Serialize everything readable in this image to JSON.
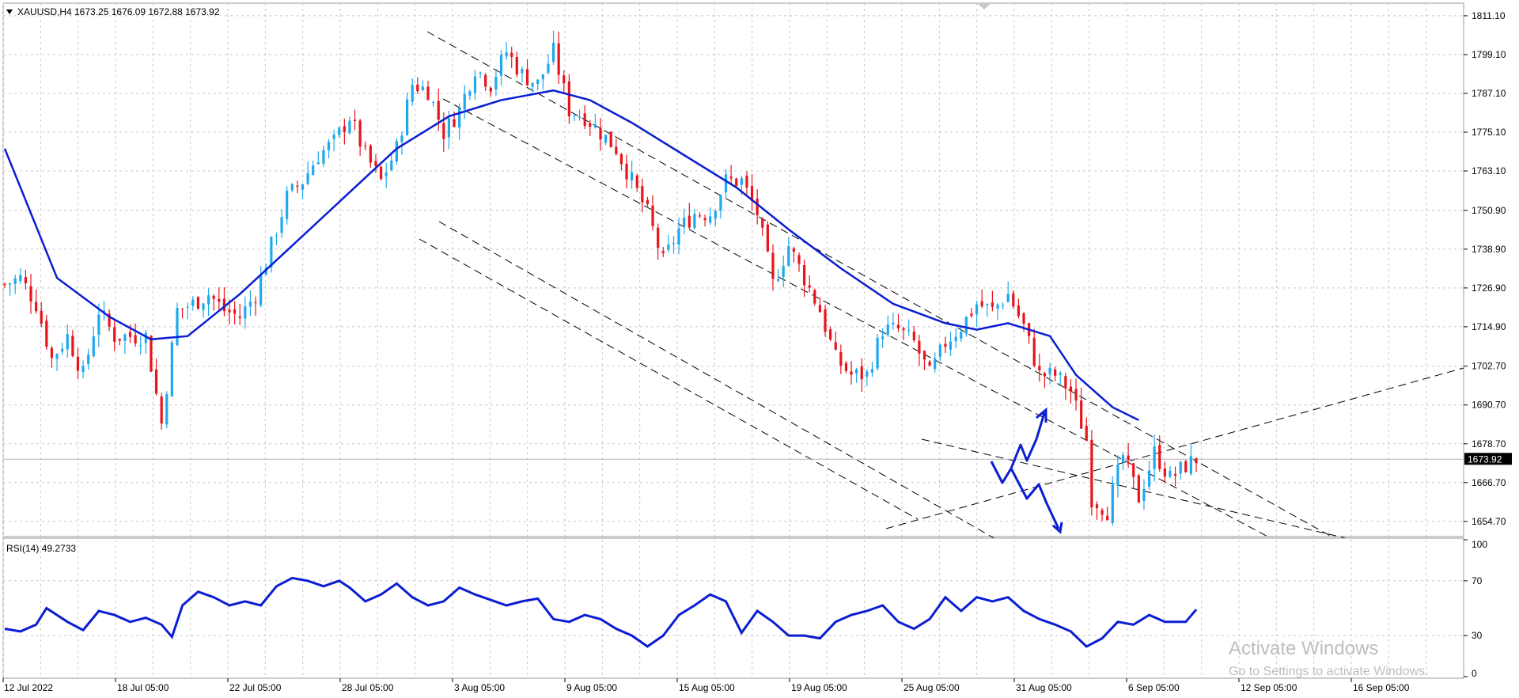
{
  "header": {
    "symbol": "XAUUSD,H4",
    "ohlc": "1673.25 1676.09 1672.88 1673.92"
  },
  "watermark": {
    "line1": "Activate Windows",
    "line2": "Go to Settings to activate Windows."
  },
  "colors": {
    "bull": "#1fa8ee",
    "bear": "#e8141c",
    "ma": "#0a1ed2",
    "grid": "#c8c8c8",
    "drawing": "#0a1ed2",
    "trend": "#000000"
  },
  "chart_data": [
    {
      "type": "candlestick",
      "symbol": "XAUUSD",
      "timeframe": "H4",
      "ylim": [
        1650.0,
        1815.0
      ],
      "y_ticks": [
        "1811.10",
        "1799.10",
        "1787.10",
        "1775.10",
        "1763.10",
        "1750.90",
        "1738.90",
        "1726.90",
        "1714.90",
        "1702.70",
        "1690.70",
        "1678.70",
        "1666.70",
        "1654.70"
      ],
      "last_price": "1673.92",
      "x_labels": [
        "12 Jul 2022",
        "18 Jul 05:00",
        "22 Jul 05:00",
        "28 Jul 05:00",
        "3 Aug 05:00",
        "9 Aug 05:00",
        "15 Aug 05:00",
        "19 Aug 05:00",
        "25 Aug 05:00",
        "31 Aug 05:00",
        "6 Sep 05:00",
        "12 Sep 05:00",
        "16 Sep 05:00"
      ],
      "close_path": [
        [
          0,
          1728
        ],
        [
          3,
          1730
        ],
        [
          6,
          1722
        ],
        [
          9,
          1705
        ],
        [
          12,
          1712
        ],
        [
          15,
          1700
        ],
        [
          18,
          1720
        ],
        [
          21,
          1712
        ],
        [
          24,
          1712
        ],
        [
          27,
          1712
        ],
        [
          30,
          1685
        ],
        [
          33,
          1720
        ],
        [
          36,
          1722
        ],
        [
          39,
          1725
        ],
        [
          42,
          1720
        ],
        [
          45,
          1718
        ],
        [
          48,
          1725
        ],
        [
          51,
          1740
        ],
        [
          54,
          1755
        ],
        [
          57,
          1760
        ],
        [
          60,
          1768
        ],
        [
          63,
          1772
        ],
        [
          66,
          1780
        ],
        [
          69,
          1768
        ],
        [
          72,
          1760
        ],
        [
          75,
          1770
        ],
        [
          78,
          1790
        ],
        [
          81,
          1788
        ],
        [
          84,
          1775
        ],
        [
          87,
          1782
        ],
        [
          90,
          1795
        ],
        [
          93,
          1790
        ],
        [
          96,
          1800
        ],
        [
          99,
          1793
        ],
        [
          102,
          1790
        ],
        [
          105,
          1800
        ],
        [
          108,
          1782
        ],
        [
          111,
          1780
        ],
        [
          114,
          1775
        ],
        [
          117,
          1770
        ],
        [
          120,
          1760
        ],
        [
          123,
          1750
        ],
        [
          126,
          1735
        ],
        [
          129,
          1745
        ],
        [
          132,
          1750
        ],
        [
          135,
          1750
        ],
        [
          138,
          1760
        ],
        [
          141,
          1760
        ],
        [
          144,
          1750
        ],
        [
          147,
          1728
        ],
        [
          150,
          1740
        ],
        [
          153,
          1730
        ],
        [
          156,
          1720
        ],
        [
          159,
          1705
        ],
        [
          162,
          1700
        ],
        [
          165,
          1700
        ],
        [
          168,
          1714
        ],
        [
          171,
          1714
        ],
        [
          174,
          1710
        ],
        [
          177,
          1700
        ],
        [
          180,
          1710
        ],
        [
          183,
          1715
        ],
        [
          186,
          1722
        ],
        [
          189,
          1720
        ],
        [
          192,
          1725
        ],
        [
          195,
          1715
        ],
        [
          198,
          1700
        ],
        [
          201,
          1700
        ],
        [
          204,
          1695
        ],
        [
          207,
          1680
        ],
        [
          208,
          1662
        ],
        [
          211,
          1658
        ],
        [
          214,
          1675
        ],
        [
          217,
          1662
        ],
        [
          220,
          1676
        ],
        [
          223,
          1668
        ],
        [
          226,
          1672
        ],
        [
          228,
          1673.92
        ]
      ],
      "ma": {
        "label": "",
        "points": [
          [
            0,
            1770
          ],
          [
            10,
            1730
          ],
          [
            20,
            1718
          ],
          [
            28,
            1711
          ],
          [
            35,
            1712
          ],
          [
            45,
            1725
          ],
          [
            55,
            1740
          ],
          [
            65,
            1755
          ],
          [
            75,
            1770
          ],
          [
            85,
            1780
          ],
          [
            95,
            1785
          ],
          [
            105,
            1788
          ],
          [
            112,
            1785
          ],
          [
            120,
            1778
          ],
          [
            130,
            1768
          ],
          [
            140,
            1758
          ],
          [
            150,
            1745
          ],
          [
            160,
            1733
          ],
          [
            170,
            1722
          ],
          [
            180,
            1716
          ],
          [
            186,
            1714
          ],
          [
            192,
            1716
          ],
          [
            200,
            1712
          ],
          [
            205,
            1700
          ],
          [
            212,
            1690
          ],
          [
            217,
            1686
          ]
        ]
      },
      "n_bars": 320,
      "hline": 1673.92
    },
    {
      "type": "line",
      "title": "RSI(14) 49.2733",
      "ylim": [
        0,
        100
      ],
      "y_ticks": [
        "100",
        "70",
        "30",
        "0"
      ],
      "points": [
        [
          0,
          35
        ],
        [
          3,
          33
        ],
        [
          6,
          38
        ],
        [
          8,
          50
        ],
        [
          12,
          40
        ],
        [
          15,
          34
        ],
        [
          18,
          48
        ],
        [
          21,
          45
        ],
        [
          24,
          40
        ],
        [
          27,
          43
        ],
        [
          30,
          38
        ],
        [
          32,
          29
        ],
        [
          34,
          52
        ],
        [
          37,
          62
        ],
        [
          40,
          58
        ],
        [
          43,
          52
        ],
        [
          46,
          55
        ],
        [
          49,
          52
        ],
        [
          52,
          66
        ],
        [
          55,
          72
        ],
        [
          58,
          70
        ],
        [
          61,
          66
        ],
        [
          64,
          70
        ],
        [
          66,
          65
        ],
        [
          69,
          55
        ],
        [
          72,
          60
        ],
        [
          75,
          68
        ],
        [
          78,
          58
        ],
        [
          81,
          52
        ],
        [
          84,
          55
        ],
        [
          87,
          65
        ],
        [
          90,
          60
        ],
        [
          93,
          56
        ],
        [
          96,
          52
        ],
        [
          99,
          55
        ],
        [
          102,
          57
        ],
        [
          105,
          42
        ],
        [
          108,
          40
        ],
        [
          111,
          45
        ],
        [
          114,
          42
        ],
        [
          117,
          35
        ],
        [
          120,
          30
        ],
        [
          123,
          22
        ],
        [
          126,
          30
        ],
        [
          129,
          45
        ],
        [
          132,
          52
        ],
        [
          135,
          60
        ],
        [
          138,
          55
        ],
        [
          141,
          32
        ],
        [
          144,
          48
        ],
        [
          147,
          40
        ],
        [
          150,
          30
        ],
        [
          153,
          30
        ],
        [
          156,
          28
        ],
        [
          159,
          40
        ],
        [
          162,
          45
        ],
        [
          165,
          48
        ],
        [
          168,
          52
        ],
        [
          171,
          40
        ],
        [
          174,
          35
        ],
        [
          177,
          42
        ],
        [
          180,
          58
        ],
        [
          183,
          48
        ],
        [
          186,
          58
        ],
        [
          189,
          55
        ],
        [
          192,
          58
        ],
        [
          195,
          48
        ],
        [
          198,
          42
        ],
        [
          201,
          38
        ],
        [
          204,
          33
        ],
        [
          207,
          22
        ],
        [
          210,
          28
        ],
        [
          213,
          40
        ],
        [
          216,
          38
        ],
        [
          219,
          45
        ],
        [
          222,
          40
        ],
        [
          226,
          40
        ],
        [
          228,
          49
        ]
      ],
      "value": "49.2733"
    }
  ]
}
